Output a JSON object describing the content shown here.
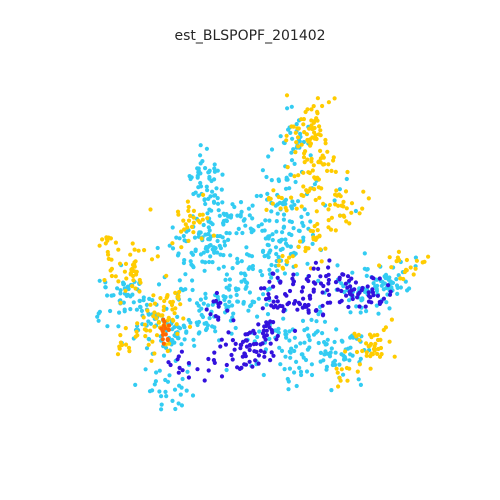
{
  "title": "est_BLSPOPF_201402",
  "palette": {
    "class_cyan": "#33ccf2",
    "class_yellow": "#ffcc00",
    "class_blue": "#3311dd",
    "class_orange": "#ff6600"
  }
}
